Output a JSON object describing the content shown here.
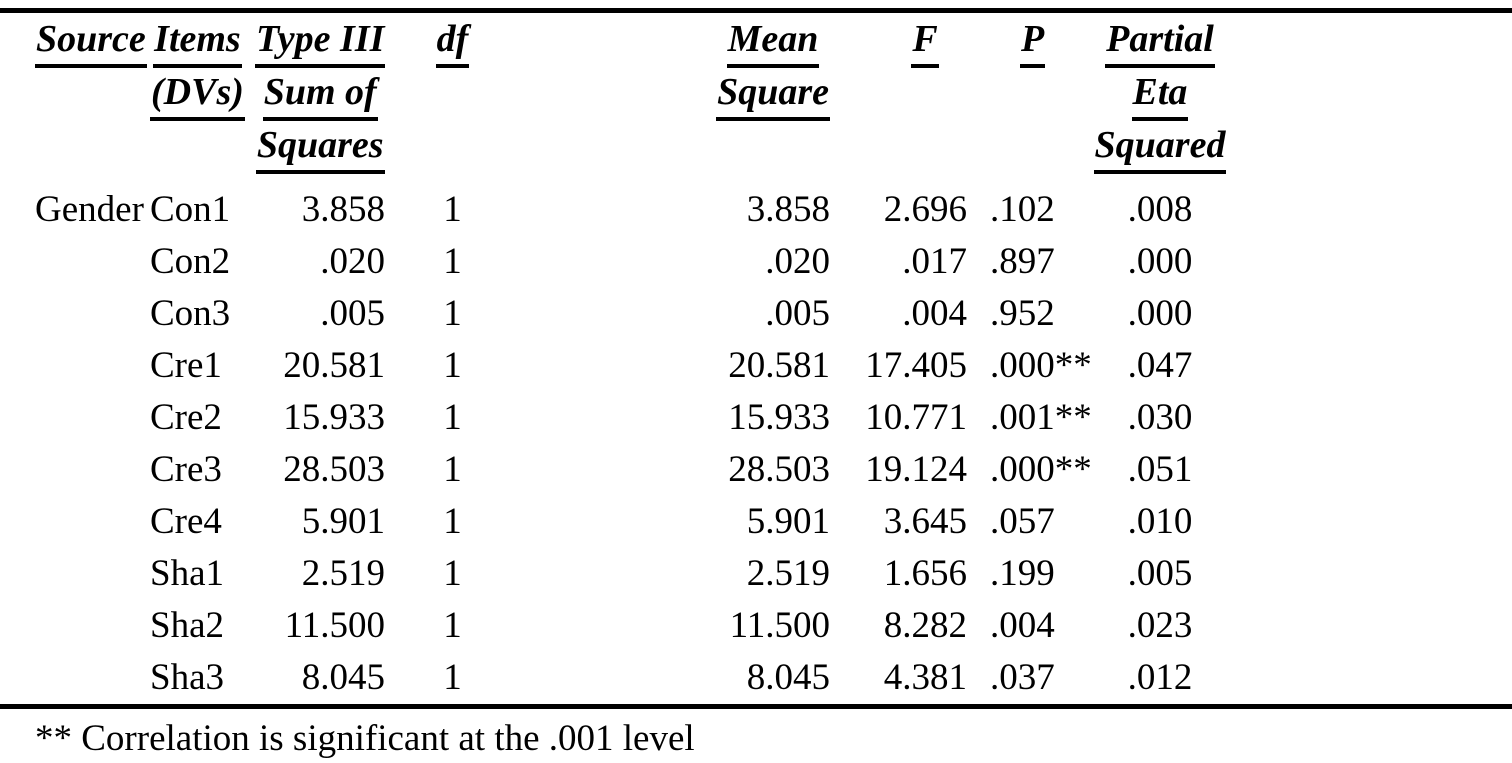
{
  "colors": {
    "text": "#000000",
    "background": "#ffffff",
    "rule": "#000000"
  },
  "table": {
    "columns": [
      {
        "key": "source",
        "label_lines": [
          "Source"
        ]
      },
      {
        "key": "items",
        "label_lines": [
          "Items",
          "(DVs)"
        ]
      },
      {
        "key": "ss",
        "label_lines": [
          "Type III",
          "Sum of",
          "Squares"
        ]
      },
      {
        "key": "df",
        "label_lines": [
          "df"
        ]
      },
      {
        "key": "ms",
        "label_lines": [
          "Mean",
          "Square"
        ]
      },
      {
        "key": "f",
        "label_lines": [
          "F"
        ]
      },
      {
        "key": "p",
        "label_lines": [
          "P"
        ]
      },
      {
        "key": "eta",
        "label_lines": [
          "Partial",
          "Eta",
          "Squared"
        ]
      }
    ],
    "rows": [
      {
        "source": "Gender",
        "items": "Con1",
        "ss": "3.858",
        "df": "1",
        "ms": "3.858",
        "f": "2.696",
        "p": ".102",
        "eta": ".008"
      },
      {
        "source": "",
        "items": "Con2",
        "ss": ".020",
        "df": "1",
        "ms": ".020",
        "f": ".017",
        "p": ".897",
        "eta": ".000"
      },
      {
        "source": "",
        "items": "Con3",
        "ss": ".005",
        "df": "1",
        "ms": ".005",
        "f": ".004",
        "p": ".952",
        "eta": ".000"
      },
      {
        "source": "",
        "items": "Cre1",
        "ss": "20.581",
        "df": "1",
        "ms": "20.581",
        "f": "17.405",
        "p": ".000**",
        "eta": ".047"
      },
      {
        "source": "",
        "items": "Cre2",
        "ss": "15.933",
        "df": "1",
        "ms": "15.933",
        "f": "10.771",
        "p": ".001**",
        "eta": ".030"
      },
      {
        "source": "",
        "items": "Cre3",
        "ss": "28.503",
        "df": "1",
        "ms": "28.503",
        "f": "19.124",
        "p": ".000**",
        "eta": ".051"
      },
      {
        "source": "",
        "items": "Cre4",
        "ss": "5.901",
        "df": "1",
        "ms": "5.901",
        "f": "3.645",
        "p": ".057",
        "eta": ".010"
      },
      {
        "source": "",
        "items": "Sha1",
        "ss": "2.519",
        "df": "1",
        "ms": "2.519",
        "f": "1.656",
        "p": ".199",
        "eta": ".005"
      },
      {
        "source": "",
        "items": "Sha2",
        "ss": "11.500",
        "df": "1",
        "ms": "11.500",
        "f": "8.282",
        "p": ".004",
        "eta": ".023"
      },
      {
        "source": "",
        "items": "Sha3",
        "ss": "8.045",
        "df": "1",
        "ms": "8.045",
        "f": "4.381",
        "p": ".037",
        "eta": ".012"
      }
    ],
    "footnote": "** Correlation is significant at the .001 level"
  }
}
